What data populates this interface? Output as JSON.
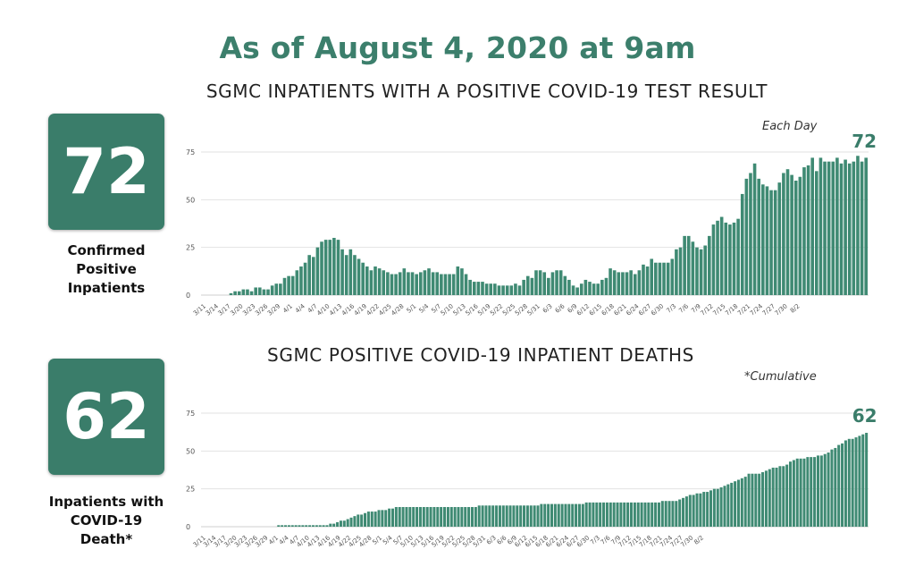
{
  "headline": "As of August 4, 2020 at 9am",
  "colors": {
    "accent": "#3a7d6a",
    "bar": "#3f8a73",
    "grid": "#e2e2e2"
  },
  "stats": {
    "confirmed": {
      "value": "72",
      "label": "Confirmed\nPositive\nInpatients"
    },
    "deaths": {
      "value": "62",
      "label": "Inpatients with\nCOVID-19\nDeath*"
    }
  },
  "chart_data": [
    {
      "type": "bar",
      "title": "SGMC INPATIENTS WITH A POSITIVE COVID-19 TEST RESULT",
      "note": "Each Day",
      "end_label": "72",
      "ylim": [
        0,
        75
      ],
      "yticks": [
        0,
        25,
        50,
        75
      ],
      "grid": true,
      "tick_labels": [
        "3/11",
        "3/14",
        "3/17",
        "3/20",
        "3/23",
        "3/26",
        "3/29",
        "4/1",
        "4/4",
        "4/7",
        "4/10",
        "4/13",
        "4/16",
        "4/19",
        "4/22",
        "4/25",
        "4/28",
        "5/1",
        "5/4",
        "5/7",
        "5/10",
        "5/13",
        "5/16",
        "5/19",
        "5/22",
        "5/25",
        "5/28",
        "5/31",
        "6/3",
        "6/6",
        "6/9",
        "6/12",
        "6/15",
        "6/18",
        "6/21",
        "6/24",
        "6/27",
        "6/30",
        "7/3",
        "7/6",
        "7/9",
        "7/12",
        "7/15",
        "7/18",
        "7/21",
        "7/24",
        "7/27",
        "7/30",
        "8/2"
      ],
      "start_date": "2020-03-11",
      "values": [
        0,
        0,
        0,
        0,
        0,
        0,
        1,
        2,
        2,
        3,
        3,
        2,
        4,
        4,
        3,
        3,
        5,
        6,
        6,
        9,
        10,
        10,
        13,
        15,
        17,
        21,
        20,
        25,
        28,
        29,
        29,
        30,
        29,
        24,
        21,
        24,
        21,
        19,
        17,
        15,
        13,
        15,
        14,
        13,
        12,
        11,
        11,
        12,
        14,
        12,
        12,
        11,
        12,
        13,
        14,
        12,
        12,
        11,
        11,
        11,
        11,
        15,
        14,
        11,
        8,
        7,
        7,
        7,
        6,
        6,
        6,
        5,
        5,
        5,
        5,
        6,
        5,
        8,
        10,
        9,
        13,
        13,
        12,
        9,
        12,
        13,
        13,
        10,
        8,
        5,
        4,
        6,
        8,
        7,
        6,
        6,
        8,
        9,
        14,
        13,
        12,
        12,
        12,
        13,
        11,
        13,
        16,
        15,
        19,
        17,
        17,
        17,
        17,
        19,
        24,
        25,
        31,
        31,
        28,
        25,
        24,
        26,
        31,
        37,
        39,
        41,
        38,
        37,
        38,
        40,
        53,
        61,
        64,
        69,
        61,
        58,
        57,
        55,
        55,
        59,
        64,
        66,
        63,
        60,
        62,
        67,
        68,
        72,
        65,
        72,
        70,
        70,
        70,
        72,
        69,
        71,
        69,
        70,
        73,
        70,
        72
      ]
    },
    {
      "type": "bar",
      "title": "SGMC POSITIVE COVID-19 INPATIENT DEATHS",
      "note": "*Cumulative",
      "end_label": "62",
      "ylim": [
        0,
        75
      ],
      "yticks": [
        0,
        25,
        50,
        75
      ],
      "grid": true,
      "tick_labels": [
        "3/11",
        "3/14",
        "3/17",
        "3/20",
        "3/23",
        "3/26",
        "3/29",
        "4/1",
        "4/4",
        "4/7",
        "4/10",
        "4/13",
        "4/16",
        "4/19",
        "4/22",
        "4/25",
        "4/28",
        "5/1",
        "5/4",
        "5/7",
        "5/10",
        "5/13",
        "5/16",
        "5/19",
        "5/22",
        "5/25",
        "5/28",
        "5/31",
        "6/3",
        "6/6",
        "6/9",
        "6/12",
        "6/15",
        "6/18",
        "6/21",
        "6/24",
        "6/27",
        "6/30",
        "7/3",
        "7/6",
        "7/9",
        "7/12",
        "7/15",
        "7/18",
        "7/21",
        "7/24",
        "7/27",
        "7/30",
        "8/2"
      ],
      "start_date": "2020-03-11",
      "values": [
        0,
        0,
        0,
        0,
        0,
        0,
        0,
        0,
        0,
        0,
        0,
        0,
        0,
        0,
        0,
        0,
        0,
        0,
        0,
        0,
        0,
        1,
        1,
        1,
        1,
        1,
        1,
        1,
        1,
        1,
        1,
        1,
        1,
        1,
        1,
        1,
        2,
        2,
        3,
        4,
        4,
        5,
        6,
        7,
        8,
        8,
        9,
        10,
        10,
        10,
        11,
        11,
        11,
        12,
        12,
        13,
        13,
        13,
        13,
        13,
        13,
        13,
        13,
        13,
        13,
        13,
        13,
        13,
        13,
        13,
        13,
        13,
        13,
        13,
        13,
        13,
        13,
        13,
        13,
        14,
        14,
        14,
        14,
        14,
        14,
        14,
        14,
        14,
        14,
        14,
        14,
        14,
        14,
        14,
        14,
        14,
        14,
        15,
        15,
        15,
        15,
        15,
        15,
        15,
        15,
        15,
        15,
        15,
        15,
        15,
        16,
        16,
        16,
        16,
        16,
        16,
        16,
        16,
        16,
        16,
        16,
        16,
        16,
        16,
        16,
        16,
        16,
        16,
        16,
        16,
        16,
        16,
        17,
        17,
        17,
        17,
        17,
        18,
        19,
        20,
        21,
        21,
        22,
        22,
        23,
        23,
        24,
        25,
        25,
        26,
        27,
        28,
        29,
        30,
        31,
        32,
        33,
        35,
        35,
        35,
        35,
        36,
        37,
        38,
        39,
        39,
        40,
        40,
        41,
        43,
        44,
        45,
        45,
        45,
        46,
        46,
        46,
        47,
        47,
        48,
        49,
        51,
        52,
        54,
        55,
        57,
        58,
        58,
        59,
        60,
        61,
        62
      ]
    }
  ]
}
